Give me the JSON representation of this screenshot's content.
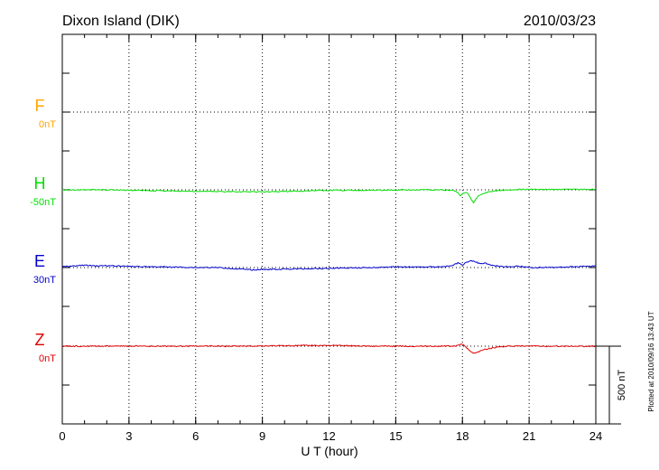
{
  "chart_data": {
    "type": "line",
    "title": "Dixon Island (DIK)",
    "date": "2010/03/23",
    "xlabel": "U T (hour)",
    "xlim": [
      0,
      24
    ],
    "xticks": [
      "0",
      "3",
      "6",
      "9",
      "12",
      "15",
      "18",
      "21",
      "24"
    ],
    "scale_bar_label": "500 nT",
    "plotted_note": "Plotted at 2010/09/16 13:43 UT",
    "grid": true,
    "series": [
      {
        "name": "F",
        "baseline_label": "0nT",
        "color": "#ffa500",
        "x": [],
        "y": []
      },
      {
        "name": "H",
        "baseline_label": "-50nT",
        "color": "#00dd00",
        "x": [
          0,
          1,
          2,
          3,
          4,
          5,
          6,
          7,
          8,
          9,
          10,
          11,
          12,
          13,
          14,
          15,
          16,
          17,
          17.5,
          17.7,
          17.9,
          18.0,
          18.2,
          18.4,
          18.5,
          18.7,
          19.0,
          19.3,
          19.6,
          20,
          21,
          22,
          23,
          24
        ],
        "y": [
          0,
          0,
          0,
          -3,
          -5,
          -7,
          -10,
          -11,
          -12,
          -13,
          -10,
          -7,
          -3,
          -3,
          -3,
          0,
          0,
          0,
          -3,
          -8,
          -35,
          -25,
          -15,
          -60,
          -85,
          -40,
          -20,
          -12,
          -5,
          0,
          3,
          3,
          3,
          3
        ]
      },
      {
        "name": "E",
        "baseline_label": "30nT",
        "color": "#0000cc",
        "x": [
          0,
          0.5,
          1,
          1.5,
          2,
          3,
          4,
          5,
          6,
          7,
          8,
          8.5,
          9,
          10,
          11,
          12,
          13,
          14,
          15,
          16,
          17,
          17.5,
          17.8,
          18.0,
          18.2,
          18.4,
          18.6,
          18.8,
          19.0,
          19.3,
          19.6,
          20,
          20.5,
          21,
          22,
          23,
          24
        ],
        "y": [
          5,
          10,
          15,
          10,
          12,
          8,
          5,
          3,
          0,
          0,
          -10,
          -15,
          -12,
          -10,
          -8,
          -5,
          -2,
          0,
          5,
          3,
          5,
          10,
          30,
          15,
          35,
          45,
          35,
          25,
          30,
          15,
          10,
          5,
          8,
          0,
          0,
          5,
          10
        ]
      },
      {
        "name": "Z",
        "baseline_label": "0nT",
        "color": "#dd0000",
        "x": [
          0,
          2,
          4,
          6,
          8,
          10,
          12,
          14,
          16,
          17,
          17.5,
          17.8,
          18.0,
          18.2,
          18.4,
          18.6,
          18.8,
          19.2,
          19.6,
          20,
          21,
          22,
          23,
          24
        ],
        "y": [
          0,
          0,
          0,
          0,
          0,
          3,
          5,
          0,
          0,
          0,
          0,
          3,
          15,
          -10,
          -40,
          -45,
          -30,
          -15,
          -5,
          0,
          0,
          0,
          0,
          0
        ]
      }
    ]
  }
}
